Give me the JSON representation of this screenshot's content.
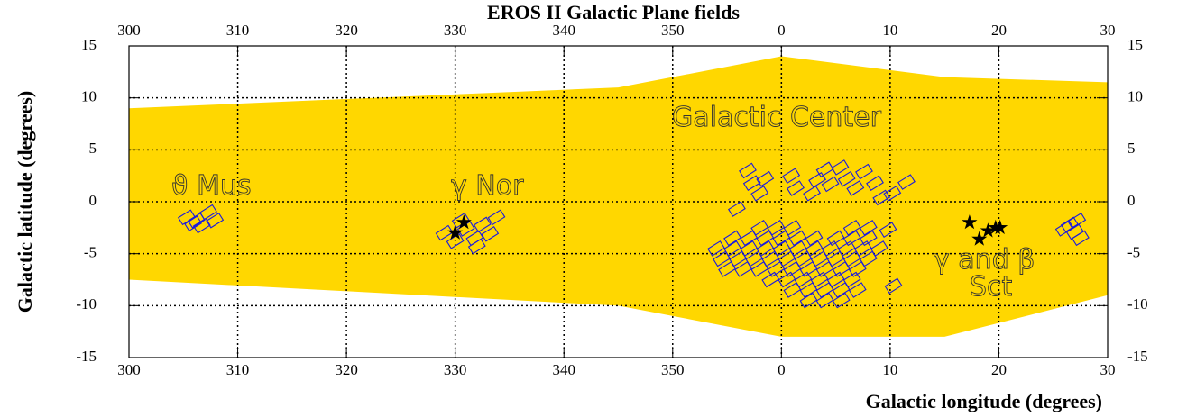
{
  "chart_data": {
    "type": "scatter",
    "title": "EROS II Galactic Plane fields",
    "x_label": "Galactic longitude (degrees)",
    "y_label": "Galactic latitude (degrees)",
    "xlim": [
      300,
      390
    ],
    "ylim": [
      -15,
      15
    ],
    "xticks": [
      300,
      310,
      320,
      330,
      340,
      350,
      {
        "value": 360,
        "label": "0"
      },
      {
        "value": 370,
        "label": "10"
      },
      {
        "value": 380,
        "label": "20"
      },
      {
        "value": 390,
        "label": "30"
      }
    ],
    "yticks": [
      -15,
      -10,
      -5,
      0,
      5,
      10,
      15
    ],
    "grid": true,
    "annotations": [
      "ϑ Mus",
      "γ Nor",
      "Galactic Center",
      "γ and β",
      "Sct"
    ],
    "region": {
      "color": "#ffd700",
      "x": [
        300,
        345,
        360,
        375,
        390,
        390,
        375,
        360,
        345,
        300
      ],
      "y": [
        9,
        11,
        14,
        12,
        11.5,
        -9,
        -13,
        -13,
        -10,
        -7.5
      ]
    },
    "fields": {
      "color": "#1a1add",
      "x": [
        305.3,
        305.9,
        306.7,
        307.3,
        307.9,
        306.2,
        329,
        330,
        331,
        331.8,
        332.5,
        333.2,
        332,
        330.5,
        333.8,
        356.9,
        357.3,
        358,
        358.5,
        360.9,
        361.3,
        362.8,
        363.3,
        364,
        364.5,
        365.4,
        366,
        366.8,
        367.6,
        368.6,
        369.2,
        370.2,
        371.5,
        355.9,
        358,
        359.5,
        361,
        366.5,
        368,
        369.8,
        355.5,
        357,
        358.5,
        360,
        361.5,
        363,
        365,
        366.5,
        368,
        354,
        355.5,
        357,
        358.5,
        360,
        361.5,
        363,
        364.5,
        366,
        367.5,
        369,
        354.5,
        356,
        357.5,
        359,
        360.5,
        362,
        363.5,
        365,
        366.5,
        368,
        355,
        356.5,
        358,
        359.5,
        361,
        362.5,
        364,
        365.5,
        367,
        359,
        360.5,
        362,
        363.5,
        365,
        366.5,
        361,
        362.5,
        364,
        365.5,
        367,
        362.5,
        364,
        365.5,
        370.3,
        386.5,
        387.2,
        386,
        387.5,
        387
      ],
      "y": [
        -1.5,
        -2.1,
        -2.3,
        -1,
        -1.8,
        -1.8,
        -3,
        -3.8,
        -2.6,
        -3.5,
        -2.2,
        -3.1,
        -4.3,
        -1.8,
        -1.5,
        3,
        1.8,
        0.8,
        2.2,
        2.5,
        1.3,
        0.8,
        2.1,
        3.1,
        1.7,
        3.3,
        2.2,
        1.3,
        2.9,
        1.8,
        0.4,
        0.8,
        1.9,
        -0.7,
        -2.5,
        -2.5,
        -2.5,
        -2.5,
        -2.5,
        -2.7,
        -3.5,
        -3.5,
        -3.5,
        -3.5,
        -3.5,
        -3.5,
        -3.5,
        -3.5,
        -3.5,
        -4.5,
        -4.5,
        -4.5,
        -4.5,
        -4.5,
        -4.5,
        -4.5,
        -4.5,
        -4.5,
        -4.5,
        -4.5,
        -5.5,
        -5.5,
        -5.5,
        -5.5,
        -5.5,
        -5.5,
        -5.5,
        -5.5,
        -5.5,
        -5.5,
        -6.5,
        -6.5,
        -6.5,
        -6.5,
        -6.5,
        -6.5,
        -6.5,
        -6.5,
        -6.5,
        -7.5,
        -7.5,
        -7.5,
        -7.5,
        -7.5,
        -7.5,
        -8.5,
        -8.5,
        -8.5,
        -8.5,
        -8.5,
        -9.5,
        -9.5,
        -9.5,
        -8.1,
        -2.2,
        -1.8,
        -2.6,
        -3.5,
        -2.9
      ]
    },
    "stars": {
      "color": "#000000",
      "x": [
        330,
        330.8,
        377.3,
        378.2,
        379,
        379.7,
        380.1
      ],
      "y": [
        -3,
        -2,
        -2,
        -3.6,
        -2.8,
        -2.5,
        -2.5
      ]
    }
  }
}
